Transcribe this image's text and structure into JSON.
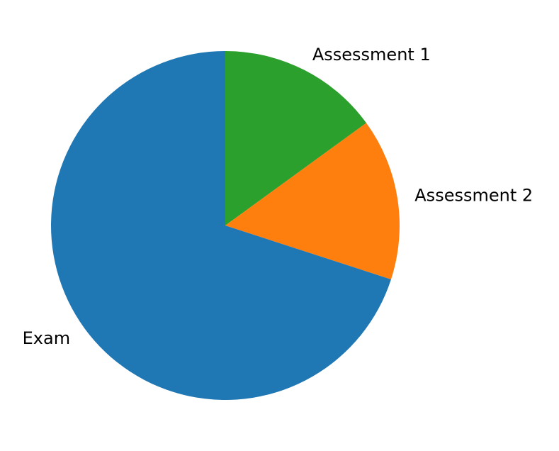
{
  "chart_data": {
    "type": "pie",
    "labels": [
      "Assessment 1",
      "Assessment 2",
      "Exam"
    ],
    "values": [
      15,
      15,
      70
    ],
    "unit": "%",
    "colors": [
      "#2ca02c",
      "#ff7f0e",
      "#1f77b4"
    ],
    "start_angle_deg": 90,
    "direction": "clockwise",
    "legend": "none",
    "title": ""
  }
}
